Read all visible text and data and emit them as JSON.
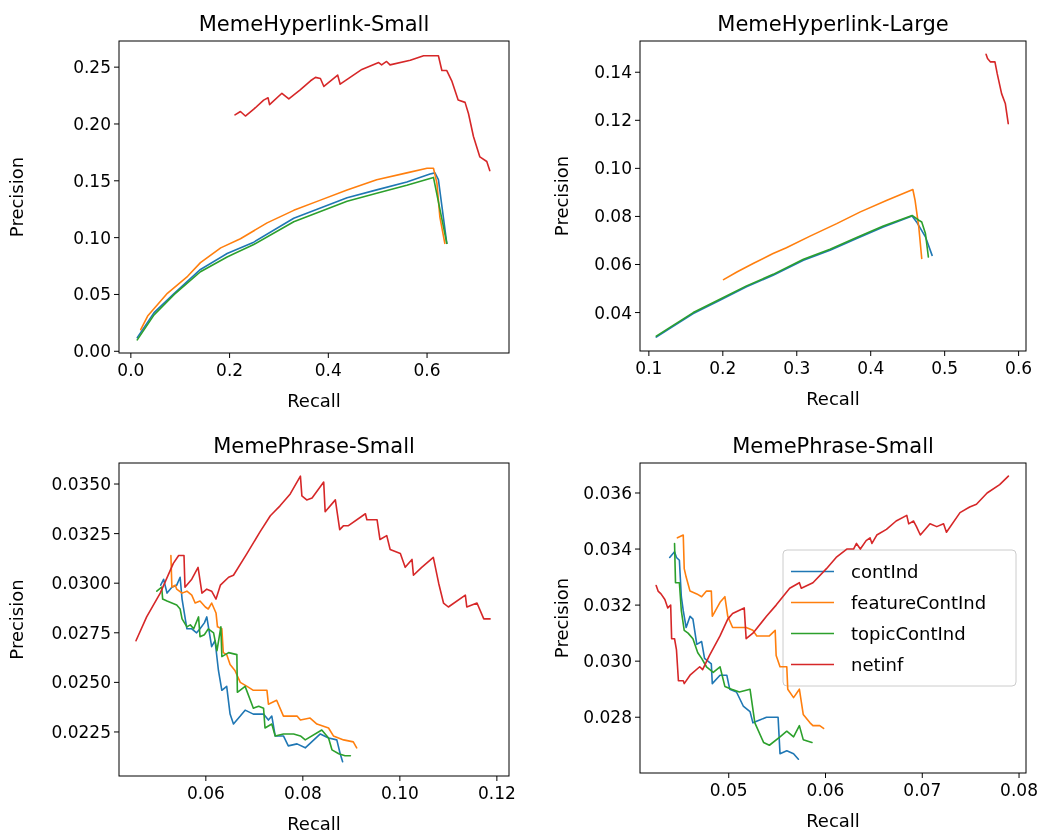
{
  "chart_data": [
    {
      "type": "line",
      "title": "MemeHyperlink-Small",
      "xlabel": "Recall",
      "ylabel": "Precision",
      "xlim": [
        -0.024,
        0.766
      ],
      "ylim": [
        -0.0015,
        0.273
      ],
      "xticks": [
        {
          "value": 0,
          "label": "0.0"
        },
        {
          "value": 0.2,
          "label": "0.2"
        },
        {
          "value": 0.4,
          "label": "0.4"
        },
        {
          "value": 0.6,
          "label": "0.6"
        }
      ],
      "yticks": [
        {
          "value": 0,
          "label": "0.00"
        },
        {
          "value": 0.05,
          "label": "0.05"
        },
        {
          "value": 0.1,
          "label": "0.10"
        },
        {
          "value": 0.15,
          "label": "0.15"
        },
        {
          "value": 0.2,
          "label": "0.20"
        },
        {
          "value": 0.25,
          "label": "0.25"
        }
      ],
      "series": [
        {
          "color": "#1f77b4",
          "x": [
            0.013,
            0.047,
            0.088,
            0.141,
            0.195,
            0.249,
            0.33,
            0.384,
            0.438,
            0.498,
            0.559,
            0.606,
            0.616,
            0.623,
            0.633,
            0.64
          ],
          "values": [
            0.012,
            0.034,
            0.051,
            0.072,
            0.086,
            0.096,
            0.117,
            0.126,
            0.135,
            0.142,
            0.149,
            0.156,
            0.157,
            0.151,
            0.118,
            0.095
          ]
        },
        {
          "color": "#ff7f0e",
          "x": [
            0.02,
            0.034,
            0.074,
            0.115,
            0.141,
            0.182,
            0.222,
            0.276,
            0.33,
            0.384,
            0.438,
            0.498,
            0.559,
            0.6,
            0.613,
            0.62,
            0.626,
            0.636
          ],
          "values": [
            0.019,
            0.031,
            0.051,
            0.066,
            0.078,
            0.091,
            0.099,
            0.113,
            0.124,
            0.133,
            0.142,
            0.151,
            0.157,
            0.161,
            0.161,
            0.148,
            0.118,
            0.095
          ]
        },
        {
          "color": "#2ca02c",
          "x": [
            0.013,
            0.047,
            0.088,
            0.141,
            0.195,
            0.249,
            0.33,
            0.384,
            0.438,
            0.498,
            0.559,
            0.613,
            0.64
          ],
          "values": [
            0.01,
            0.032,
            0.05,
            0.07,
            0.083,
            0.094,
            0.114,
            0.123,
            0.132,
            0.139,
            0.146,
            0.153,
            0.095
          ]
        },
        {
          "color": "#d62728",
          "x": [
            0.211,
            0.222,
            0.232,
            0.249,
            0.269,
            0.278,
            0.281,
            0.306,
            0.32,
            0.343,
            0.364,
            0.374,
            0.384,
            0.391,
            0.419,
            0.424,
            0.468,
            0.502,
            0.508,
            0.518,
            0.525,
            0.566,
            0.593,
            0.623,
            0.63,
            0.64,
            0.65,
            0.663,
            0.677,
            0.684,
            0.694,
            0.707,
            0.721,
            0.727
          ],
          "values": [
            0.208,
            0.211,
            0.207,
            0.213,
            0.221,
            0.223,
            0.217,
            0.227,
            0.222,
            0.23,
            0.238,
            0.241,
            0.24,
            0.233,
            0.243,
            0.235,
            0.248,
            0.254,
            0.252,
            0.255,
            0.252,
            0.256,
            0.26,
            0.26,
            0.247,
            0.247,
            0.238,
            0.221,
            0.219,
            0.209,
            0.189,
            0.171,
            0.167,
            0.159
          ]
        }
      ]
    },
    {
      "type": "line",
      "title": "MemeHyperlink-Large",
      "xlabel": "Recall",
      "ylabel": "Precision",
      "xlim": [
        0.088,
        0.61
      ],
      "ylim": [
        0.024,
        0.153
      ],
      "xticks": [
        {
          "value": 0.1,
          "label": "0.1"
        },
        {
          "value": 0.2,
          "label": "0.2"
        },
        {
          "value": 0.3,
          "label": "0.3"
        },
        {
          "value": 0.4,
          "label": "0.4"
        },
        {
          "value": 0.5,
          "label": "0.5"
        },
        {
          "value": 0.6,
          "label": "0.6"
        }
      ],
      "yticks": [
        {
          "value": 0.04,
          "label": "0.04"
        },
        {
          "value": 0.06,
          "label": "0.06"
        },
        {
          "value": 0.08,
          "label": "0.08"
        },
        {
          "value": 0.1,
          "label": "0.10"
        },
        {
          "value": 0.12,
          "label": "0.12"
        },
        {
          "value": 0.14,
          "label": "0.14"
        }
      ],
      "series": [
        {
          "color": "#1f77b4",
          "x": [
            0.11,
            0.128,
            0.16,
            0.196,
            0.232,
            0.268,
            0.309,
            0.345,
            0.381,
            0.417,
            0.456,
            0.462,
            0.474,
            0.483
          ],
          "values": [
            0.0298,
            0.0333,
            0.0396,
            0.0451,
            0.0507,
            0.0555,
            0.0618,
            0.0659,
            0.0708,
            0.0756,
            0.0802,
            0.0777,
            0.0715,
            0.0638
          ]
        },
        {
          "color": "#ff7f0e",
          "x": [
            0.201,
            0.219,
            0.241,
            0.268,
            0.286,
            0.318,
            0.354,
            0.386,
            0.422,
            0.457,
            0.46,
            0.465,
            0.469
          ],
          "values": [
            0.0537,
            0.0569,
            0.0604,
            0.0646,
            0.067,
            0.0718,
            0.077,
            0.0819,
            0.0867,
            0.0912,
            0.0867,
            0.0756,
            0.0625
          ]
        },
        {
          "color": "#2ca02c",
          "x": [
            0.11,
            0.128,
            0.16,
            0.196,
            0.232,
            0.268,
            0.309,
            0.345,
            0.381,
            0.417,
            0.456,
            0.465,
            0.469,
            0.474,
            0.478
          ],
          "values": [
            0.0302,
            0.0337,
            0.04,
            0.0455,
            0.0511,
            0.0559,
            0.0622,
            0.0663,
            0.0712,
            0.076,
            0.0804,
            0.0784,
            0.0777,
            0.0729,
            0.0631
          ]
        },
        {
          "color": "#d62728",
          "x": [
            0.556,
            0.558,
            0.562,
            0.568,
            0.571,
            0.573,
            0.577,
            0.582,
            0.586
          ],
          "values": [
            0.1475,
            0.1457,
            0.1443,
            0.1443,
            0.1395,
            0.1367,
            0.1311,
            0.127,
            0.1186
          ]
        }
      ]
    },
    {
      "type": "line",
      "title": "MemePhrase-Small",
      "xlabel": "Recall",
      "ylabel": "Precision",
      "xlim": [
        0.0421,
        0.1225
      ],
      "ylim": [
        0.02028,
        0.03606
      ],
      "xticks": [
        {
          "value": 0.06,
          "label": "0.06"
        },
        {
          "value": 0.08,
          "label": "0.08"
        },
        {
          "value": 0.1,
          "label": "0.10"
        },
        {
          "value": 0.12,
          "label": "0.12"
        }
      ],
      "yticks": [
        {
          "value": 0.0225,
          "label": "0.0225"
        },
        {
          "value": 0.025,
          "label": "0.0250"
        },
        {
          "value": 0.0275,
          "label": "0.0275"
        },
        {
          "value": 0.03,
          "label": "0.0300"
        },
        {
          "value": 0.0325,
          "label": "0.0325"
        },
        {
          "value": 0.035,
          "label": "0.0350"
        }
      ],
      "series": [
        {
          "color": "#1f77b4",
          "x": [
            0.0507,
            0.0513,
            0.052,
            0.053,
            0.054,
            0.0547,
            0.0551,
            0.0561,
            0.0571,
            0.0581,
            0.0588,
            0.0597,
            0.0602,
            0.0612,
            0.0619,
            0.0626,
            0.0633,
            0.0643,
            0.065,
            0.0657,
            0.0671,
            0.0681,
            0.0698,
            0.0719,
            0.0729,
            0.0736,
            0.0743,
            0.076,
            0.077,
            0.0788,
            0.0805,
            0.0836,
            0.0853,
            0.087,
            0.0877,
            0.0882
          ],
          "values": [
            0.0299,
            0.0302,
            0.0295,
            0.0298,
            0.0299,
            0.0303,
            0.0292,
            0.0277,
            0.0277,
            0.0275,
            0.0277,
            0.028,
            0.0283,
            0.0268,
            0.0271,
            0.0256,
            0.0246,
            0.0248,
            0.0234,
            0.0229,
            0.0233,
            0.0236,
            0.0234,
            0.0234,
            0.0231,
            0.0233,
            0.0223,
            0.0223,
            0.0218,
            0.0219,
            0.0217,
            0.0224,
            0.0222,
            0.0221,
            0.0214,
            0.021
          ]
        },
        {
          "color": "#ff7f0e",
          "x": [
            0.0528,
            0.053,
            0.0537,
            0.054,
            0.0551,
            0.0561,
            0.0571,
            0.0578,
            0.0588,
            0.0599,
            0.0605,
            0.0612,
            0.0621,
            0.0624,
            0.0633,
            0.0636,
            0.0643,
            0.065,
            0.066,
            0.0671,
            0.0685,
            0.0698,
            0.0726,
            0.0729,
            0.0746,
            0.076,
            0.0788,
            0.0795,
            0.0815,
            0.0829,
            0.0853,
            0.0863,
            0.0884,
            0.0904,
            0.0911
          ],
          "values": [
            0.0314,
            0.0298,
            0.0299,
            0.0297,
            0.0295,
            0.0296,
            0.0294,
            0.029,
            0.0291,
            0.0288,
            0.0287,
            0.029,
            0.0285,
            0.0278,
            0.0277,
            0.0265,
            0.0264,
            0.0259,
            0.0256,
            0.025,
            0.0248,
            0.0246,
            0.0246,
            0.0239,
            0.0241,
            0.0233,
            0.0233,
            0.0231,
            0.0232,
            0.0229,
            0.0227,
            0.0223,
            0.0221,
            0.022,
            0.0217
          ]
        },
        {
          "color": "#2ca02c",
          "x": [
            0.0499,
            0.0509,
            0.0511,
            0.052,
            0.054,
            0.0547,
            0.0551,
            0.0561,
            0.0568,
            0.0575,
            0.0585,
            0.0588,
            0.0597,
            0.0605,
            0.0616,
            0.0623,
            0.0631,
            0.0633,
            0.0647,
            0.0664,
            0.0665,
            0.0681,
            0.0698,
            0.0709,
            0.0719,
            0.0722,
            0.0736,
            0.0743,
            0.076,
            0.0781,
            0.0795,
            0.0805,
            0.0839,
            0.0853,
            0.086,
            0.0874,
            0.0887,
            0.0898
          ],
          "values": [
            0.0296,
            0.0298,
            0.0292,
            0.0291,
            0.0289,
            0.0287,
            0.0282,
            0.0278,
            0.0279,
            0.0277,
            0.0283,
            0.0273,
            0.0274,
            0.0277,
            0.0275,
            0.0266,
            0.0278,
            0.0263,
            0.0265,
            0.0264,
            0.0245,
            0.0248,
            0.0237,
            0.0238,
            0.0237,
            0.0227,
            0.0229,
            0.0223,
            0.0224,
            0.0224,
            0.0223,
            0.0221,
            0.0226,
            0.0222,
            0.0216,
            0.0214,
            0.0213,
            0.0213
          ]
        },
        {
          "color": "#d62728",
          "x": [
            0.0456,
            0.0478,
            0.0506,
            0.0533,
            0.0544,
            0.0551,
            0.0555,
            0.0557,
            0.0571,
            0.0584,
            0.0592,
            0.0602,
            0.0612,
            0.0621,
            0.063,
            0.0647,
            0.0657,
            0.0685,
            0.0712,
            0.0733,
            0.0753,
            0.0774,
            0.0795,
            0.0798,
            0.0808,
            0.0819,
            0.0843,
            0.0846,
            0.0867,
            0.0876,
            0.0884,
            0.0894,
            0.0929,
            0.0932,
            0.0953,
            0.0959,
            0.0973,
            0.098,
            0.1001,
            0.1011,
            0.1025,
            0.1028,
            0.1045,
            0.1069,
            0.108,
            0.109,
            0.11,
            0.1135,
            0.1138,
            0.1159,
            0.1173,
            0.1186
          ],
          "values": [
            0.0271,
            0.0283,
            0.0295,
            0.031,
            0.0314,
            0.0314,
            0.0314,
            0.0298,
            0.0302,
            0.0308,
            0.0295,
            0.0297,
            0.0296,
            0.0292,
            0.0299,
            0.0303,
            0.0304,
            0.0315,
            0.0326,
            0.0334,
            0.0339,
            0.0345,
            0.0354,
            0.0344,
            0.0342,
            0.0343,
            0.0351,
            0.0336,
            0.0342,
            0.0327,
            0.0329,
            0.0329,
            0.0335,
            0.0332,
            0.0332,
            0.0322,
            0.0324,
            0.0317,
            0.0315,
            0.0308,
            0.0312,
            0.0304,
            0.0308,
            0.0313,
            0.03,
            0.029,
            0.0288,
            0.0294,
            0.0288,
            0.029,
            0.0282,
            0.0282
          ]
        }
      ]
    },
    {
      "type": "line",
      "title": "MemePhrase-Small",
      "xlabel": "Recall",
      "ylabel": "Precision",
      "xlim": [
        0.04083,
        0.08072
      ],
      "ylim": [
        0.02601,
        0.03707
      ],
      "legend": "right",
      "xticks": [
        {
          "value": 0.05,
          "label": "0.05"
        },
        {
          "value": 0.06,
          "label": "0.06"
        },
        {
          "value": 0.07,
          "label": "0.07"
        },
        {
          "value": 0.08,
          "label": "0.08"
        }
      ],
      "yticks": [
        {
          "value": 0.028,
          "label": "0.028"
        },
        {
          "value": 0.03,
          "label": "0.030"
        },
        {
          "value": 0.032,
          "label": "0.032"
        },
        {
          "value": 0.034,
          "label": "0.034"
        },
        {
          "value": 0.036,
          "label": "0.036"
        }
      ],
      "series": [
        {
          "name": "contInd",
          "color": "#1f77b4",
          "x": [
            0.0439,
            0.0444,
            0.0446,
            0.0449,
            0.0451,
            0.0453,
            0.0456,
            0.046,
            0.0463,
            0.0467,
            0.0472,
            0.0475,
            0.0482,
            0.0483,
            0.0491,
            0.0498,
            0.0501,
            0.0508,
            0.0515,
            0.0522,
            0.0525,
            0.0532,
            0.0539,
            0.0551,
            0.0553,
            0.056,
            0.0567,
            0.0572
          ],
          "values": [
            0.0337,
            0.0339,
            0.0337,
            0.0336,
            0.0323,
            0.0318,
            0.0312,
            0.0316,
            0.0315,
            0.0306,
            0.0307,
            0.0301,
            0.0299,
            0.0292,
            0.0295,
            0.0295,
            0.029,
            0.0289,
            0.0284,
            0.0282,
            0.0278,
            0.0279,
            0.028,
            0.028,
            0.0267,
            0.0268,
            0.0267,
            0.0265
          ]
        },
        {
          "name": "featureContInd",
          "color": "#ff7f0e",
          "x": [
            0.0447,
            0.0453,
            0.0454,
            0.0456,
            0.046,
            0.0467,
            0.0472,
            0.0477,
            0.0482,
            0.0483,
            0.0491,
            0.0496,
            0.0499,
            0.0504,
            0.0518,
            0.0525,
            0.0529,
            0.0542,
            0.0548,
            0.0549,
            0.0553,
            0.056,
            0.0561,
            0.0567,
            0.0573,
            0.0577,
            0.0584,
            0.0587,
            0.0594,
            0.0598
          ],
          "values": [
            0.0344,
            0.0345,
            0.0333,
            0.033,
            0.0325,
            0.0324,
            0.0323,
            0.0325,
            0.0325,
            0.0316,
            0.0321,
            0.0323,
            0.0316,
            0.0312,
            0.0312,
            0.0311,
            0.0309,
            0.0309,
            0.0311,
            0.0302,
            0.0298,
            0.0298,
            0.029,
            0.0287,
            0.029,
            0.0281,
            0.0278,
            0.0277,
            0.0277,
            0.0276
          ]
        },
        {
          "name": "topicContInd",
          "color": "#2ca02c",
          "x": [
            0.0444,
            0.0445,
            0.0449,
            0.0451,
            0.0454,
            0.0458,
            0.0463,
            0.0468,
            0.0472,
            0.0477,
            0.0484,
            0.0491,
            0.0496,
            0.0503,
            0.0511,
            0.0522,
            0.0527,
            0.0536,
            0.0542,
            0.0553,
            0.056,
            0.0567,
            0.0573,
            0.0577,
            0.0586
          ],
          "values": [
            0.0342,
            0.0328,
            0.0328,
            0.0318,
            0.0311,
            0.031,
            0.0308,
            0.0303,
            0.0301,
            0.0298,
            0.0296,
            0.0298,
            0.0291,
            0.029,
            0.0289,
            0.029,
            0.0278,
            0.0271,
            0.027,
            0.0273,
            0.0275,
            0.0273,
            0.0277,
            0.0272,
            0.0271
          ]
        },
        {
          "name": "netinf",
          "color": "#d62728",
          "x": [
            0.0425,
            0.0427,
            0.043,
            0.0434,
            0.0437,
            0.044,
            0.0441,
            0.0444,
            0.0446,
            0.0448,
            0.0453,
            0.0454,
            0.046,
            0.047,
            0.0473,
            0.048,
            0.0491,
            0.0499,
            0.0504,
            0.0516,
            0.0518,
            0.0525,
            0.0539,
            0.0549,
            0.0563,
            0.0573,
            0.0575,
            0.0587,
            0.0601,
            0.0611,
            0.0622,
            0.0629,
            0.0632,
            0.0636,
            0.0642,
            0.0646,
            0.0648,
            0.0653,
            0.0663,
            0.0673,
            0.0684,
            0.0686,
            0.0691,
            0.0694,
            0.0698,
            0.0708,
            0.0715,
            0.0722,
            0.0725,
            0.0739,
            0.0749,
            0.0756,
            0.0767,
            0.078,
            0.0789
          ],
          "values": [
            0.0327,
            0.0325,
            0.0324,
            0.0322,
            0.0319,
            0.032,
            0.0308,
            0.0308,
            0.0304,
            0.0293,
            0.0293,
            0.0292,
            0.0295,
            0.0298,
            0.0297,
            0.0302,
            0.0309,
            0.0315,
            0.0317,
            0.0319,
            0.0308,
            0.031,
            0.0316,
            0.032,
            0.0326,
            0.0328,
            0.0326,
            0.0328,
            0.0333,
            0.0337,
            0.034,
            0.034,
            0.0342,
            0.034,
            0.0343,
            0.0344,
            0.0342,
            0.0345,
            0.0347,
            0.035,
            0.0352,
            0.0349,
            0.035,
            0.0348,
            0.0345,
            0.0349,
            0.0348,
            0.0349,
            0.0346,
            0.0353,
            0.0355,
            0.0356,
            0.036,
            0.0363,
            0.0366
          ]
        }
      ]
    }
  ]
}
